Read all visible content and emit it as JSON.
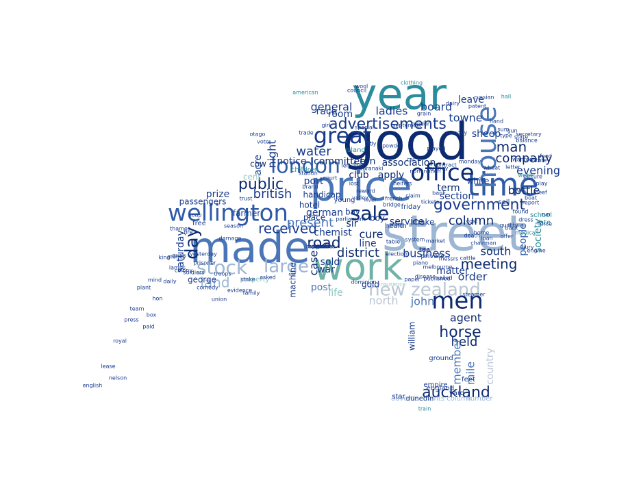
{
  "wordcloud": {
    "colors": {
      "navy": "#0b2a6f",
      "darkblue": "#173a8c",
      "blue": "#2f5aa8",
      "steel": "#4a76b8",
      "teal": "#2a8c9c",
      "seafoam": "#6fb3a6",
      "paleblue": "#9cb6d4",
      "lightteal": "#8fc7bf",
      "grey": "#b9c6d3",
      "background": "#ffffff"
    },
    "words": [
      {
        "text": "year",
        "color": "teal"
      },
      {
        "text": "good",
        "color": "navy"
      },
      {
        "text": "street",
        "color": "paleblue"
      },
      {
        "text": "price",
        "color": "steel"
      },
      {
        "text": "time",
        "color": "blue"
      },
      {
        "text": "made",
        "color": "steel"
      },
      {
        "text": "work",
        "color": "seafoam"
      },
      {
        "text": "wellington",
        "color": "blue"
      },
      {
        "text": "london",
        "color": "blue"
      },
      {
        "text": "sale",
        "color": "navy"
      },
      {
        "text": "great",
        "color": "darkblue"
      },
      {
        "text": "office",
        "color": "navy"
      },
      {
        "text": "house",
        "color": "steel"
      },
      {
        "text": "government",
        "color": "darkblue"
      },
      {
        "text": "new zealand",
        "color": "grey"
      },
      {
        "text": "men",
        "color": "navy"
      },
      {
        "text": "stock",
        "color": "paleblue"
      },
      {
        "text": "large",
        "color": "paleblue"
      },
      {
        "text": "advertisements",
        "color": "darkblue"
      },
      {
        "text": "public",
        "color": "navy"
      },
      {
        "text": "received",
        "color": "darkblue"
      },
      {
        "text": "road",
        "color": "navy"
      },
      {
        "text": "column",
        "color": "navy"
      },
      {
        "text": "meeting",
        "color": "navy"
      },
      {
        "text": "british",
        "color": "darkblue"
      },
      {
        "text": "day",
        "color": "navy"
      },
      {
        "text": "land",
        "color": "paleblue"
      },
      {
        "text": "present",
        "color": "steel"
      },
      {
        "text": "district",
        "color": "navy"
      },
      {
        "text": "business",
        "color": "darkblue"
      },
      {
        "text": "company",
        "color": "navy"
      },
      {
        "text": "evening",
        "color": "darkblue"
      },
      {
        "text": "horse",
        "color": "navy"
      },
      {
        "text": "auckland",
        "color": "navy"
      },
      {
        "text": "held",
        "color": "navy"
      },
      {
        "text": "agent",
        "color": "navy"
      },
      {
        "text": "man",
        "color": "navy"
      },
      {
        "text": "water",
        "color": "darkblue"
      },
      {
        "text": "general",
        "color": "darkblue"
      },
      {
        "text": "ladies",
        "color": "darkblue"
      },
      {
        "text": "board",
        "color": "darkblue"
      },
      {
        "text": "towne",
        "color": "darkblue"
      },
      {
        "text": "sheep",
        "color": "darkblue"
      },
      {
        "text": "night",
        "color": "darkblue"
      },
      {
        "text": "committee",
        "color": "navy"
      },
      {
        "text": "association",
        "color": "navy"
      },
      {
        "text": "notice",
        "color": "darkblue"
      },
      {
        "text": "ton",
        "color": "navy"
      },
      {
        "text": "club",
        "color": "navy"
      },
      {
        "text": "apply",
        "color": "navy"
      },
      {
        "text": "term",
        "color": "navy"
      },
      {
        "text": "section",
        "color": "darkblue"
      },
      {
        "text": "bottle",
        "color": "navy"
      },
      {
        "text": "people",
        "color": "blue"
      },
      {
        "text": "society",
        "color": "teal"
      },
      {
        "text": "south",
        "color": "navy"
      },
      {
        "text": "cure",
        "color": "navy"
      },
      {
        "text": "chemist",
        "color": "darkblue"
      },
      {
        "text": "line",
        "color": "darkblue"
      },
      {
        "text": "war",
        "color": "darkblue"
      },
      {
        "text": "case",
        "color": "navy"
      },
      {
        "text": "sold",
        "color": "darkblue"
      },
      {
        "text": "post",
        "color": "steel"
      },
      {
        "text": "life",
        "color": "lightteal"
      },
      {
        "text": "matter",
        "color": "darkblue"
      },
      {
        "text": "order",
        "color": "darkblue"
      },
      {
        "text": "john",
        "color": "steel"
      },
      {
        "text": "member",
        "color": "steel"
      },
      {
        "text": "mile",
        "color": "steel"
      },
      {
        "text": "country",
        "color": "grey"
      },
      {
        "text": "william",
        "color": "darkblue"
      },
      {
        "text": "service",
        "color": "darkblue"
      },
      {
        "text": "saturday",
        "color": "darkblue"
      },
      {
        "text": "george",
        "color": "darkblue"
      },
      {
        "text": "prize",
        "color": "darkblue"
      },
      {
        "text": "passengers",
        "color": "darkblue"
      },
      {
        "text": "acre",
        "color": "darkblue"
      },
      {
        "text": "cent",
        "color": "lightteal"
      },
      {
        "text": "cow",
        "color": "navy"
      },
      {
        "text": "port",
        "color": "darkblue"
      },
      {
        "text": "room",
        "color": "darkblue"
      },
      {
        "text": "race",
        "color": "darkblue"
      },
      {
        "text": "leave",
        "color": "darkblue"
      },
      {
        "text": "german",
        "color": "darkblue"
      },
      {
        "text": "bay",
        "color": "darkblue"
      },
      {
        "text": "sir",
        "color": "navy"
      },
      {
        "text": "make",
        "color": "darkblue"
      },
      {
        "text": "white",
        "color": "darkblue"
      },
      {
        "text": "north",
        "color": "grey"
      },
      {
        "text": "place",
        "color": "darkblue"
      },
      {
        "text": "hotel",
        "color": "darkblue"
      },
      {
        "text": "machine",
        "color": "darkblue"
      },
      {
        "text": "gold",
        "color": "darkblue"
      },
      {
        "text": "farmer",
        "color": "darkblue"
      },
      {
        "text": "free",
        "color": "darkblue"
      },
      {
        "text": "property",
        "color": "lightteal"
      },
      {
        "text": "advertisements column",
        "color": "paleblue"
      },
      {
        "text": "number",
        "color": "paleblue"
      },
      {
        "text": "star",
        "color": "darkblue"
      },
      {
        "text": "empire",
        "color": "darkblue"
      },
      {
        "text": "england",
        "color": "darkblue"
      },
      {
        "text": "dunedin",
        "color": "darkblue"
      },
      {
        "text": "yard",
        "color": "darkblue"
      },
      {
        "text": "ground",
        "color": "darkblue"
      },
      {
        "text": "feet",
        "color": "darkblue"
      },
      {
        "text": "sell",
        "color": "darkblue"
      },
      {
        "text": "young",
        "color": "darkblue"
      },
      {
        "text": "handicap",
        "color": "darkblue"
      },
      {
        "text": "boy",
        "color": "darkblue"
      },
      {
        "text": "health",
        "color": "darkblue"
      },
      {
        "text": "friday",
        "color": "darkblue"
      },
      {
        "text": "island",
        "color": "teal"
      },
      {
        "text": "rate",
        "color": "teal"
      },
      {
        "text": "school",
        "color": "teal"
      },
      {
        "text": "children",
        "color": "teal"
      },
      {
        "text": "clothing",
        "color": "teal"
      },
      {
        "text": "council",
        "color": "darkblue"
      },
      {
        "text": "brand",
        "color": "darkblue"
      },
      {
        "text": "lady",
        "color": "darkblue"
      },
      {
        "text": "tea",
        "color": "darkblue"
      },
      {
        "text": "private",
        "color": "darkblue"
      },
      {
        "text": "coal",
        "color": "darkblue"
      },
      {
        "text": "lease",
        "color": "darkblue"
      },
      {
        "text": "royal",
        "color": "darkblue"
      },
      {
        "text": "press",
        "color": "darkblue"
      },
      {
        "text": "team",
        "color": "darkblue"
      },
      {
        "text": "plant",
        "color": "darkblue"
      },
      {
        "text": "mind",
        "color": "darkblue"
      },
      {
        "text": "daily",
        "color": "darkblue"
      },
      {
        "text": "lamps",
        "color": "darkblue"
      },
      {
        "text": "quay",
        "color": "darkblue"
      },
      {
        "text": "hon",
        "color": "darkblue"
      },
      {
        "text": "box",
        "color": "darkblue"
      },
      {
        "text": "paid",
        "color": "darkblue"
      },
      {
        "text": "english",
        "color": "darkblue"
      },
      {
        "text": "nelson",
        "color": "darkblue"
      },
      {
        "text": "family",
        "color": "darkblue"
      },
      {
        "text": "comedy",
        "color": "darkblue"
      },
      {
        "text": "colony",
        "color": "darkblue"
      },
      {
        "text": "money",
        "color": "darkblue"
      },
      {
        "text": "king",
        "color": "darkblue"
      },
      {
        "text": "yesterday",
        "color": "darkblue"
      },
      {
        "text": "prisoner",
        "color": "darkblue"
      },
      {
        "text": "soldiers",
        "color": "darkblue"
      },
      {
        "text": "troops",
        "color": "darkblue"
      },
      {
        "text": "union",
        "color": "darkblue"
      },
      {
        "text": "evidence",
        "color": "darkblue"
      },
      {
        "text": "asked",
        "color": "darkblue"
      },
      {
        "text": "stake",
        "color": "darkblue"
      },
      {
        "text": "season",
        "color": "darkblue"
      },
      {
        "text": "fire",
        "color": "darkblue"
      },
      {
        "text": "soap",
        "color": "darkblue"
      },
      {
        "text": "damage",
        "color": "darkblue"
      },
      {
        "text": "thames",
        "color": "darkblue"
      },
      {
        "text": "trust",
        "color": "darkblue"
      },
      {
        "text": "table",
        "color": "darkblue"
      },
      {
        "text": "dominion",
        "color": "darkblue"
      },
      {
        "text": "insurance",
        "color": "lightteal"
      },
      {
        "text": "paper",
        "color": "darkblue"
      },
      {
        "text": "published",
        "color": "darkblue"
      },
      {
        "text": "piano",
        "color": "darkblue"
      },
      {
        "text": "disease",
        "color": "darkblue"
      },
      {
        "text": "messrs",
        "color": "darkblue"
      },
      {
        "text": "death",
        "color": "darkblue"
      },
      {
        "text": "chairman",
        "color": "darkblue"
      },
      {
        "text": "steamer",
        "color": "darkblue"
      },
      {
        "text": "cattle",
        "color": "darkblue"
      },
      {
        "text": "market",
        "color": "darkblue"
      },
      {
        "text": "system",
        "color": "darkblue"
      },
      {
        "text": "tickets",
        "color": "darkblue"
      },
      {
        "text": "wheat",
        "color": "darkblue"
      },
      {
        "text": "quality",
        "color": "darkblue"
      },
      {
        "text": "dress",
        "color": "darkblue"
      },
      {
        "text": "found",
        "color": "darkblue"
      },
      {
        "text": "report",
        "color": "darkblue"
      },
      {
        "text": "picture",
        "color": "darkblue"
      },
      {
        "text": "secretary",
        "color": "darkblue"
      },
      {
        "text": "estate",
        "color": "darkblue"
      },
      {
        "text": "letter",
        "color": "darkblue"
      },
      {
        "text": "state",
        "color": "darkblue"
      },
      {
        "text": "medical",
        "color": "teal"
      },
      {
        "text": "home",
        "color": "darkblue"
      },
      {
        "text": "cost",
        "color": "darkblue"
      },
      {
        "text": "sydney",
        "color": "darkblue"
      },
      {
        "text": "back",
        "color": "darkblue"
      },
      {
        "text": "heifers",
        "color": "darkblue"
      },
      {
        "text": "claim",
        "color": "darkblue"
      },
      {
        "text": "river",
        "color": "darkblue"
      },
      {
        "text": "bridge",
        "color": "darkblue"
      },
      {
        "text": "station",
        "color": "darkblue"
      },
      {
        "text": "flour",
        "color": "darkblue"
      },
      {
        "text": "tender",
        "color": "darkblue"
      },
      {
        "text": "week",
        "color": "teal"
      },
      {
        "text": "hall",
        "color": "teal"
      },
      {
        "text": "american",
        "color": "teal"
      },
      {
        "text": "girl",
        "color": "darkblue"
      },
      {
        "text": "special",
        "color": "darkblue"
      },
      {
        "text": "court",
        "color": "darkblue"
      },
      {
        "text": "parliament",
        "color": "darkblue"
      },
      {
        "text": "reward",
        "color": "darkblue"
      },
      {
        "text": "wool",
        "color": "darkblue"
      },
      {
        "text": "train",
        "color": "teal"
      },
      {
        "text": "sailed",
        "color": "darkblue"
      },
      {
        "text": "election",
        "color": "darkblue"
      },
      {
        "text": "valley",
        "color": "darkblue"
      },
      {
        "text": "remedy",
        "color": "darkblue"
      },
      {
        "text": "gun",
        "color": "darkblue"
      },
      {
        "text": "wanted",
        "color": "darkblue"
      },
      {
        "text": "nomination",
        "color": "darkblue"
      },
      {
        "text": "september",
        "color": "darkblue"
      },
      {
        "text": "lost",
        "color": "darkblue"
      },
      {
        "text": "melbourne",
        "color": "darkblue"
      },
      {
        "text": "french",
        "color": "darkblue"
      },
      {
        "text": "monday",
        "color": "darkblue"
      },
      {
        "text": "played",
        "color": "darkblue"
      },
      {
        "text": "powder",
        "color": "darkblue"
      },
      {
        "text": "left",
        "color": "darkblue"
      },
      {
        "text": "dairy",
        "color": "darkblue"
      },
      {
        "text": "taranaki",
        "color": "darkblue"
      },
      {
        "text": "russian",
        "color": "darkblue"
      },
      {
        "text": "patent",
        "color": "darkblue"
      },
      {
        "text": "hand",
        "color": "darkblue"
      },
      {
        "text": "sum",
        "color": "darkblue"
      },
      {
        "text": "balance",
        "color": "darkblue"
      },
      {
        "text": "boat",
        "color": "darkblue"
      },
      {
        "text": "run",
        "color": "darkblue"
      },
      {
        "text": "play",
        "color": "darkblue"
      },
      {
        "text": "contract",
        "color": "darkblue"
      },
      {
        "text": "bank",
        "color": "darkblue"
      },
      {
        "text": "car",
        "color": "darkblue"
      },
      {
        "text": "grain",
        "color": "darkblue"
      },
      {
        "text": "trade",
        "color": "darkblue"
      },
      {
        "text": "otago",
        "color": "darkblue"
      },
      {
        "text": "vote",
        "color": "darkblue"
      },
      {
        "text": "offer",
        "color": "darkblue"
      },
      {
        "text": "beef",
        "color": "darkblue"
      },
      {
        "text": "force",
        "color": "darkblue"
      },
      {
        "text": "engine",
        "color": "darkblue"
      },
      {
        "text": "loan",
        "color": "darkblue"
      },
      {
        "text": "type",
        "color": "darkblue"
      },
      {
        "text": "food",
        "color": "darkblue"
      },
      {
        "text": "fight",
        "color": "darkblue"
      },
      {
        "text": "jury",
        "color": "darkblue"
      },
      {
        "text": "mrs",
        "color": "darkblue"
      },
      {
        "text": "april",
        "color": "darkblue"
      },
      {
        "text": "hour",
        "color": "darkblue"
      },
      {
        "text": "james",
        "color": "darkblue"
      },
      {
        "text": "west",
        "color": "darkblue"
      },
      {
        "text": "opposite",
        "color": "darkblue"
      },
      {
        "text": "manawatu",
        "color": "darkblue"
      },
      {
        "text": "australia",
        "color": "darkblue"
      },
      {
        "text": "kind",
        "color": "darkblue"
      },
      {
        "text": "gas",
        "color": "darkblue"
      },
      {
        "text": "hill",
        "color": "darkblue"
      },
      {
        "text": "cross",
        "color": "darkblue"
      }
    ]
  }
}
